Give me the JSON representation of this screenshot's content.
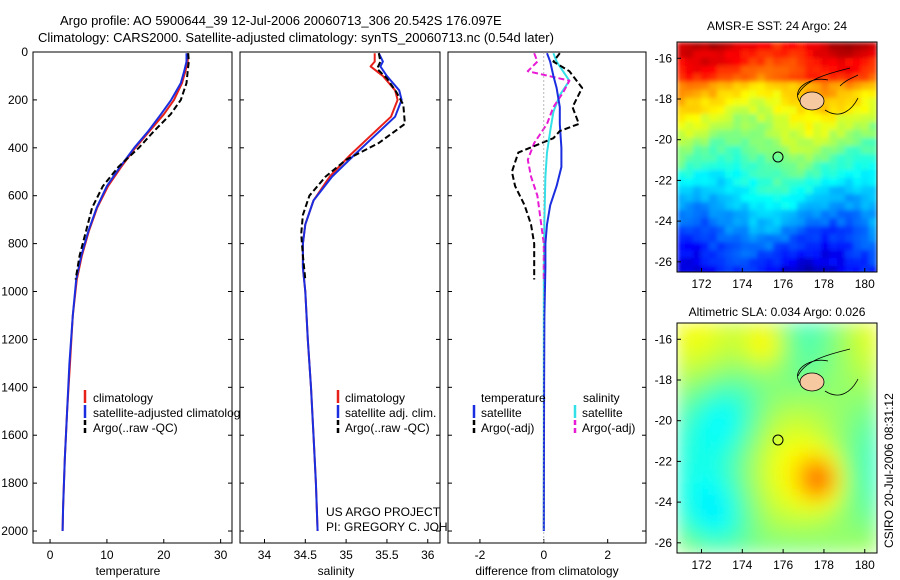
{
  "title": {
    "line1": "Argo profile: AO 5900644_39 12-Jul-2006 20060713_306 20.542S 176.097E",
    "line2": "Climatology: CARS2000. Satellite-adjusted climatology: synTS_20060713.nc (0.54d later)"
  },
  "depth_axis": {
    "ylim": [
      2050,
      0
    ],
    "ticks": [
      0,
      200,
      400,
      600,
      800,
      1000,
      1200,
      1400,
      1600,
      1800,
      2000
    ]
  },
  "colors": {
    "climatology": "#e8201a",
    "satellite": "#1a2ee0",
    "argo": "#000000",
    "salinity_sat": "#33e0e8",
    "salinity_argo": "#e81ad6"
  },
  "panels": {
    "temperature": {
      "xlabel": "temperature",
      "xlim": [
        -3,
        32
      ],
      "xticks": [
        0,
        10,
        20,
        30
      ],
      "legend": [
        "climatology",
        "satellite-adjusted climatology",
        "Argo(..raw -QC)"
      ],
      "series": {
        "climatology": [
          [
            24.2,
            5
          ],
          [
            24.2,
            40
          ],
          [
            23.8,
            80
          ],
          [
            23.2,
            130
          ],
          [
            21.8,
            200
          ],
          [
            20,
            260
          ],
          [
            17.5,
            330
          ],
          [
            15,
            400
          ],
          [
            12.5,
            480
          ],
          [
            10.2,
            560
          ],
          [
            8.3,
            650
          ],
          [
            6.8,
            750
          ],
          [
            5.6,
            850
          ],
          [
            4.7,
            950
          ],
          [
            4.0,
            1100
          ],
          [
            3.5,
            1300
          ],
          [
            3.0,
            1500
          ],
          [
            2.6,
            1700
          ],
          [
            2.3,
            1900
          ],
          [
            2.2,
            2000
          ]
        ],
        "satellite": [
          [
            24.0,
            5
          ],
          [
            24.0,
            40
          ],
          [
            23.6,
            80
          ],
          [
            23.0,
            130
          ],
          [
            21.3,
            200
          ],
          [
            19.5,
            260
          ],
          [
            17.3,
            330
          ],
          [
            14.8,
            400
          ],
          [
            12.3,
            480
          ],
          [
            10.0,
            560
          ],
          [
            8.2,
            650
          ],
          [
            6.7,
            750
          ],
          [
            5.5,
            850
          ],
          [
            4.6,
            950
          ],
          [
            4.0,
            1100
          ],
          [
            3.4,
            1300
          ],
          [
            3.0,
            1500
          ],
          [
            2.6,
            1700
          ],
          [
            2.3,
            1900
          ],
          [
            2.2,
            2000
          ]
        ],
        "argo": [
          [
            24.3,
            5
          ],
          [
            24.4,
            40
          ],
          [
            24.2,
            80
          ],
          [
            24.0,
            130
          ],
          [
            23.0,
            200
          ],
          [
            21.2,
            260
          ],
          [
            18.3,
            330
          ],
          [
            15.6,
            400
          ],
          [
            12,
            480
          ],
          [
            9.3,
            560
          ],
          [
            7.4,
            650
          ],
          [
            6.3,
            750
          ],
          [
            5.2,
            850
          ],
          [
            4.5,
            950
          ]
        ]
      }
    },
    "salinity": {
      "xlabel": "salinity",
      "xlim": [
        33.7,
        36.15
      ],
      "xticks": [
        34,
        34.5,
        35,
        35.5,
        36
      ],
      "legend": [
        "climatology",
        "satellite adj. clim.",
        "Argo(..raw -QC)"
      ],
      "credit": [
        "US ARGO PROJECT",
        "PI: GREGORY C. JOHNSON"
      ],
      "series": {
        "climatology": [
          [
            35.35,
            5
          ],
          [
            35.35,
            40
          ],
          [
            35.3,
            60
          ],
          [
            35.45,
            100
          ],
          [
            35.6,
            160
          ],
          [
            35.63,
            200
          ],
          [
            35.55,
            270
          ],
          [
            35.3,
            350
          ],
          [
            35.05,
            430
          ],
          [
            34.8,
            520
          ],
          [
            34.6,
            620
          ],
          [
            34.5,
            720
          ],
          [
            34.47,
            800
          ],
          [
            34.47,
            900
          ],
          [
            34.5,
            1000
          ],
          [
            34.53,
            1200
          ],
          [
            34.57,
            1400
          ],
          [
            34.6,
            1600
          ],
          [
            34.63,
            1800
          ],
          [
            34.65,
            2000
          ]
        ],
        "satellite": [
          [
            35.4,
            5
          ],
          [
            35.45,
            40
          ],
          [
            35.42,
            60
          ],
          [
            35.5,
            100
          ],
          [
            35.65,
            160
          ],
          [
            35.68,
            200
          ],
          [
            35.6,
            270
          ],
          [
            35.35,
            350
          ],
          [
            35.1,
            430
          ],
          [
            34.83,
            520
          ],
          [
            34.6,
            620
          ],
          [
            34.5,
            720
          ],
          [
            34.47,
            800
          ],
          [
            34.47,
            900
          ],
          [
            34.5,
            1000
          ],
          [
            34.53,
            1200
          ],
          [
            34.57,
            1400
          ],
          [
            34.6,
            1600
          ],
          [
            34.63,
            1800
          ],
          [
            34.65,
            2000
          ]
        ],
        "argo": [
          [
            35.4,
            5
          ],
          [
            35.42,
            40
          ],
          [
            35.38,
            70
          ],
          [
            35.5,
            110
          ],
          [
            35.62,
            170
          ],
          [
            35.7,
            220
          ],
          [
            35.72,
            300
          ],
          [
            35.4,
            380
          ],
          [
            35.0,
            450
          ],
          [
            34.75,
            520
          ],
          [
            34.55,
            600
          ],
          [
            34.47,
            680
          ],
          [
            34.45,
            760
          ],
          [
            34.47,
            850
          ],
          [
            34.5,
            950
          ]
        ]
      }
    },
    "difference": {
      "xlabel": "difference from climatology",
      "xlim": [
        -3,
        3.2
      ],
      "xticks": [
        -2,
        0,
        2
      ],
      "legend_left_title": "temperature",
      "legend_right_title": "salinity",
      "legend_left": [
        "satellite",
        "Argo(-adj)"
      ],
      "legend_right": [
        "satellite",
        "Argo(-adj)"
      ],
      "series": {
        "temp_satellite": [
          [
            0.1,
            5
          ],
          [
            0.2,
            40
          ],
          [
            0.3,
            100
          ],
          [
            0.4,
            150
          ],
          [
            0.5,
            230
          ],
          [
            0.5,
            300
          ],
          [
            0.55,
            400
          ],
          [
            0.55,
            480
          ],
          [
            0.4,
            560
          ],
          [
            0.2,
            640
          ],
          [
            0.1,
            720
          ],
          [
            0.05,
            800
          ],
          [
            0.05,
            900
          ],
          [
            0.02,
            1100
          ],
          [
            0.01,
            1400
          ],
          [
            0,
            2000
          ]
        ],
        "temp_argo": [
          [
            0.5,
            5
          ],
          [
            0.3,
            40
          ],
          [
            0.8,
            80
          ],
          [
            1.2,
            150
          ],
          [
            0.9,
            230
          ],
          [
            1.1,
            300
          ],
          [
            0.5,
            330
          ],
          [
            0.3,
            360
          ],
          [
            -0.8,
            420
          ],
          [
            -1.0,
            500
          ],
          [
            -0.9,
            560
          ],
          [
            -0.6,
            640
          ],
          [
            -0.4,
            720
          ],
          [
            -0.3,
            800
          ],
          [
            -0.3,
            900
          ],
          [
            -0.3,
            950
          ]
        ],
        "sal_satellite": [
          [
            0.3,
            5
          ],
          [
            0.4,
            40
          ],
          [
            0.6,
            80
          ],
          [
            0.8,
            120
          ],
          [
            0.5,
            180
          ],
          [
            0.3,
            250
          ],
          [
            0.2,
            330
          ],
          [
            0.1,
            420
          ],
          [
            0.05,
            520
          ],
          [
            0.02,
            700
          ],
          [
            0,
            900
          ],
          [
            0,
            2000
          ]
        ],
        "sal_argo": [
          [
            -0.3,
            5
          ],
          [
            -0.2,
            40
          ],
          [
            -0.5,
            80
          ],
          [
            0.8,
            120
          ],
          [
            0.6,
            170
          ],
          [
            0.3,
            230
          ],
          [
            0.1,
            300
          ],
          [
            -0.3,
            380
          ],
          [
            -0.5,
            450
          ],
          [
            -0.4,
            520
          ],
          [
            -0.2,
            600
          ],
          [
            -0.1,
            700
          ],
          [
            0,
            800
          ],
          [
            0,
            950
          ]
        ]
      }
    }
  },
  "maps": {
    "sst": {
      "title": "AMSR-E SST: 24 Argo: 24",
      "xticks": [
        172,
        174,
        176,
        178,
        180
      ],
      "yticks": [
        -16,
        -18,
        -20,
        -22,
        -24,
        -26
      ],
      "xlim": [
        170.8,
        180.6
      ],
      "ylim": [
        -26.5,
        -15.2
      ],
      "argo_position": [
        176.1,
        -20.5
      ]
    },
    "sla": {
      "title": "Altimetric SLA: 0.034 Argo: 0.026",
      "xticks": [
        172,
        174,
        176,
        178,
        180
      ],
      "yticks": [
        -16,
        -18,
        -20,
        -22,
        -24,
        -26
      ],
      "xlim": [
        170.8,
        180.6
      ],
      "ylim": [
        -26.5,
        -15.2
      ],
      "argo_position": [
        176.1,
        -20.5
      ]
    }
  },
  "stamp": "CSIRO 20-Jul-2006 08:31:12"
}
